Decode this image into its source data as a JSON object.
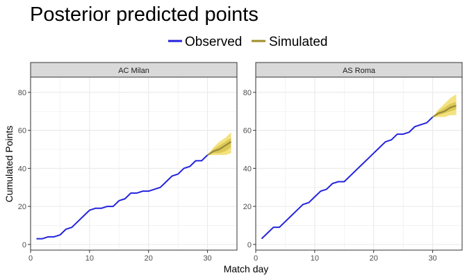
{
  "chart_data": {
    "type": "line",
    "title": "Posterior predicted points",
    "xlabel": "Match day",
    "ylabel": "Cumulated Points",
    "xlim": [
      0,
      35
    ],
    "ylim": [
      -3,
      88
    ],
    "xticks": [
      0,
      10,
      20,
      30
    ],
    "yticks": [
      0,
      20,
      40,
      60,
      80
    ],
    "grid": true,
    "legend": {
      "position": "top",
      "entries": [
        {
          "label": "Observed",
          "color": "#2222dd"
        },
        {
          "label": "Simulated",
          "color": "#a08c28"
        }
      ]
    },
    "colors": {
      "observed": "#2222dd",
      "band_outer": "#f2df72",
      "band_inner": "#d9c64f",
      "simulated_median": "#8c7d3a",
      "strip_fill": "#d9d9d9",
      "grid": "#ebebeb",
      "panel_border": "#333333"
    },
    "panels": [
      {
        "label": "AC Milan",
        "observed": {
          "x": [
            1,
            2,
            3,
            4,
            5,
            6,
            7,
            8,
            9,
            10,
            11,
            12,
            13,
            14,
            15,
            16,
            17,
            18,
            19,
            20,
            21,
            22,
            23,
            24,
            25,
            26,
            27,
            28,
            29,
            30
          ],
          "y": [
            3,
            3,
            4,
            4,
            5,
            8,
            9,
            12,
            15,
            18,
            19,
            19,
            20,
            20,
            23,
            24,
            27,
            27,
            28,
            28,
            29,
            30,
            33,
            36,
            37,
            40,
            41,
            44,
            44,
            47
          ]
        },
        "simulated": {
          "x": [
            30,
            31,
            32,
            33,
            34
          ],
          "median": [
            47,
            49,
            50,
            52,
            54
          ],
          "inner_low": [
            47,
            48,
            48,
            49,
            51
          ],
          "inner_high": [
            47,
            50,
            52,
            54,
            56
          ],
          "outer_low": [
            47,
            47,
            47,
            47,
            48
          ],
          "outer_high": [
            47,
            51,
            54,
            56,
            59
          ]
        }
      },
      {
        "label": "AS Roma",
        "observed": {
          "x": [
            1,
            2,
            3,
            4,
            5,
            6,
            7,
            8,
            9,
            10,
            11,
            12,
            13,
            14,
            15,
            16,
            17,
            18,
            19,
            20,
            21,
            22,
            23,
            24,
            25,
            26,
            27,
            28,
            29,
            30
          ],
          "y": [
            3,
            6,
            9,
            9,
            12,
            15,
            18,
            21,
            22,
            25,
            28,
            29,
            32,
            33,
            33,
            36,
            39,
            42,
            45,
            48,
            51,
            54,
            55,
            58,
            58,
            59,
            62,
            63,
            64,
            67
          ]
        },
        "simulated": {
          "x": [
            30,
            31,
            32,
            33,
            34
          ],
          "median": [
            67,
            69,
            70,
            72,
            73
          ],
          "inner_low": [
            67,
            68,
            69,
            70,
            71
          ],
          "inner_high": [
            67,
            70,
            72,
            74,
            75
          ],
          "outer_low": [
            67,
            67,
            67,
            68,
            68
          ],
          "outer_high": [
            67,
            71,
            74,
            77,
            79
          ]
        }
      }
    ]
  }
}
